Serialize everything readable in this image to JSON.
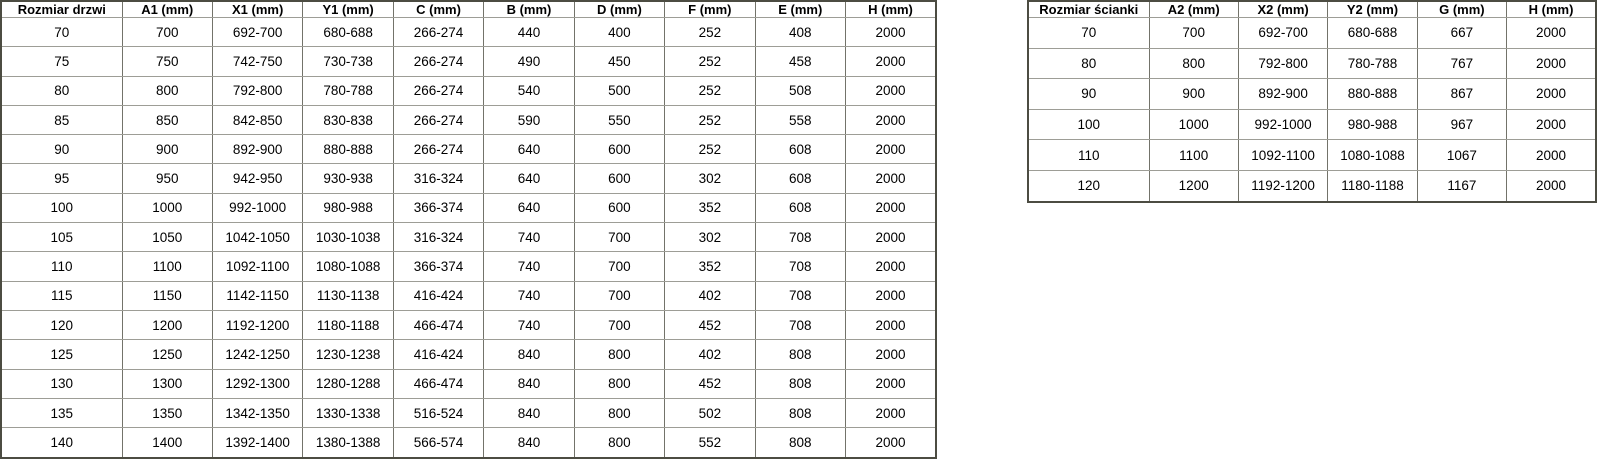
{
  "page": {
    "background": "#ffffff",
    "text_color": "#000000",
    "border_inner_vertical": "#73736a",
    "border_inner_horizontal": "#9d9d96",
    "border_outer": "#4c4c42"
  },
  "doors_table": {
    "title": "door dimensions table",
    "headers": [
      "Rozmiar drzwi",
      "A1 (mm)",
      "X1 (mm)",
      "Y1 (mm)",
      "C (mm)",
      "B (mm)",
      "D (mm)",
      "F (mm)",
      "E (mm)",
      "H (mm)"
    ],
    "rows": [
      [
        "70",
        "700",
        "692-700",
        "680-688",
        "266-274",
        "440",
        "400",
        "252",
        "408",
        "2000"
      ],
      [
        "75",
        "750",
        "742-750",
        "730-738",
        "266-274",
        "490",
        "450",
        "252",
        "458",
        "2000"
      ],
      [
        "80",
        "800",
        "792-800",
        "780-788",
        "266-274",
        "540",
        "500",
        "252",
        "508",
        "2000"
      ],
      [
        "85",
        "850",
        "842-850",
        "830-838",
        "266-274",
        "590",
        "550",
        "252",
        "558",
        "2000"
      ],
      [
        "90",
        "900",
        "892-900",
        "880-888",
        "266-274",
        "640",
        "600",
        "252",
        "608",
        "2000"
      ],
      [
        "95",
        "950",
        "942-950",
        "930-938",
        "316-324",
        "640",
        "600",
        "302",
        "608",
        "2000"
      ],
      [
        "100",
        "1000",
        "992-1000",
        "980-988",
        "366-374",
        "640",
        "600",
        "352",
        "608",
        "2000"
      ],
      [
        "105",
        "1050",
        "1042-1050",
        "1030-1038",
        "316-324",
        "740",
        "700",
        "302",
        "708",
        "2000"
      ],
      [
        "110",
        "1100",
        "1092-1100",
        "1080-1088",
        "366-374",
        "740",
        "700",
        "352",
        "708",
        "2000"
      ],
      [
        "115",
        "1150",
        "1142-1150",
        "1130-1138",
        "416-424",
        "740",
        "700",
        "402",
        "708",
        "2000"
      ],
      [
        "120",
        "1200",
        "1192-1200",
        "1180-1188",
        "466-474",
        "740",
        "700",
        "452",
        "708",
        "2000"
      ],
      [
        "125",
        "1250",
        "1242-1250",
        "1230-1238",
        "416-424",
        "840",
        "800",
        "402",
        "808",
        "2000"
      ],
      [
        "130",
        "1300",
        "1292-1300",
        "1280-1288",
        "466-474",
        "840",
        "800",
        "452",
        "808",
        "2000"
      ],
      [
        "135",
        "1350",
        "1342-1350",
        "1330-1338",
        "516-524",
        "840",
        "800",
        "502",
        "808",
        "2000"
      ],
      [
        "140",
        "1400",
        "1392-1400",
        "1380-1388",
        "566-574",
        "840",
        "800",
        "552",
        "808",
        "2000"
      ]
    ]
  },
  "walls_table": {
    "title": "wall panel dimensions table",
    "headers": [
      "Rozmiar ścianki",
      "A2 (mm)",
      "X2 (mm)",
      "Y2 (mm)",
      "G (mm)",
      "H (mm)"
    ],
    "rows": [
      [
        "70",
        "700",
        "692-700",
        "680-688",
        "667",
        "2000"
      ],
      [
        "80",
        "800",
        "792-800",
        "780-788",
        "767",
        "2000"
      ],
      [
        "90",
        "900",
        "892-900",
        "880-888",
        "867",
        "2000"
      ],
      [
        "100",
        "1000",
        "992-1000",
        "980-988",
        "967",
        "2000"
      ],
      [
        "110",
        "1100",
        "1092-1100",
        "1080-1088",
        "1067",
        "2000"
      ],
      [
        "120",
        "1200",
        "1192-1200",
        "1180-1188",
        "1167",
        "2000"
      ]
    ]
  }
}
